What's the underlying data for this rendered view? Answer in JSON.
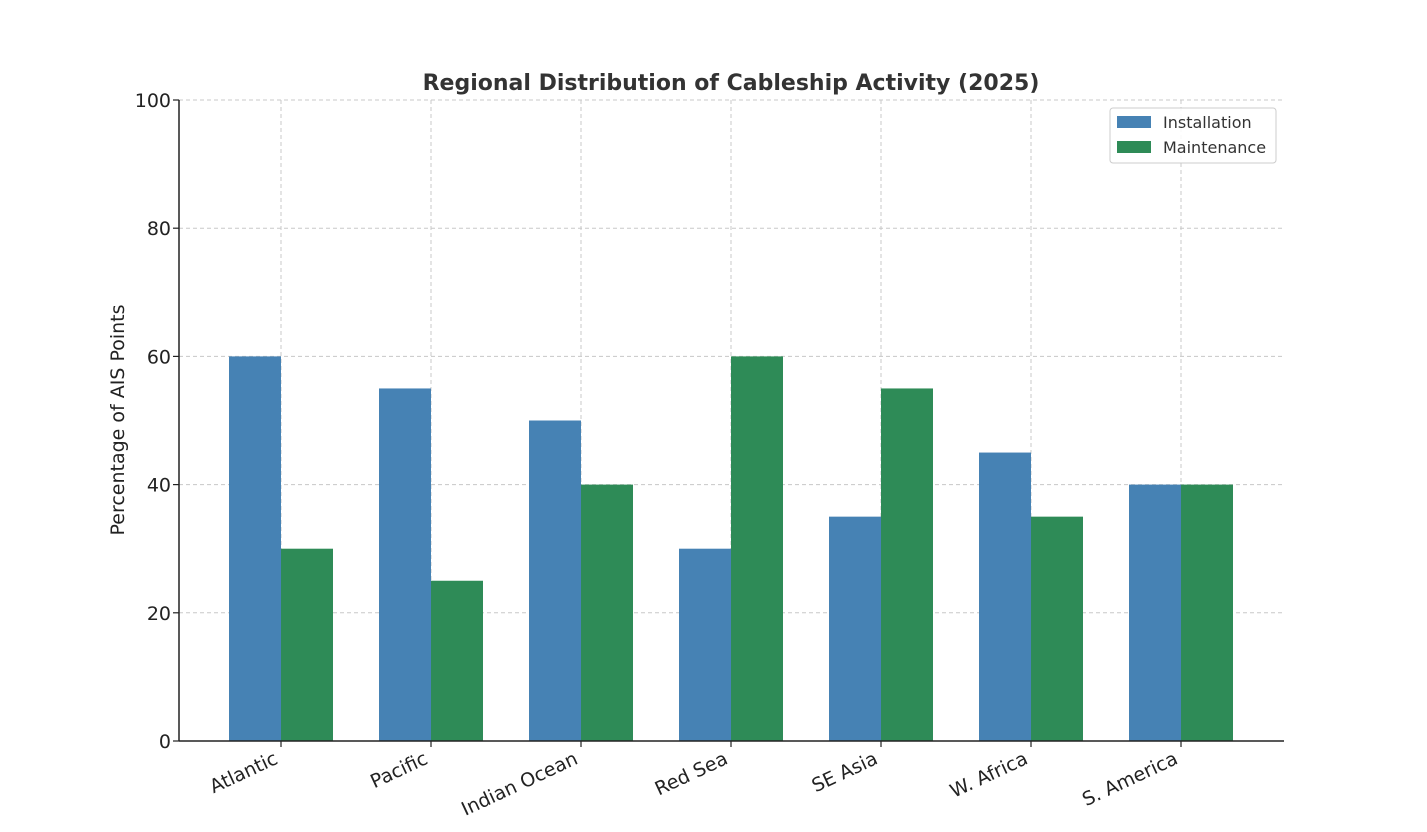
{
  "chart_data": {
    "type": "bar",
    "title": "Regional Distribution of Cableship Activity (2025)",
    "xlabel": "",
    "ylabel": "Percentage of AIS Points",
    "ylim": [
      0,
      100
    ],
    "yticks": [
      "0",
      "20",
      "40",
      "60",
      "80",
      "100"
    ],
    "grid": true,
    "legend_position": "top-right",
    "categories": [
      "Atlantic",
      "Pacific",
      "Indian Ocean",
      "Red Sea",
      "SE Asia",
      "W. Africa",
      "S. America"
    ],
    "series": [
      {
        "name": "Installation",
        "color": "#4682b4",
        "values": [
          60,
          55,
          50,
          30,
          35,
          45,
          40
        ]
      },
      {
        "name": "Maintenance",
        "color": "#2e8b57",
        "values": [
          30,
          25,
          40,
          60,
          55,
          35,
          40
        ]
      }
    ]
  }
}
